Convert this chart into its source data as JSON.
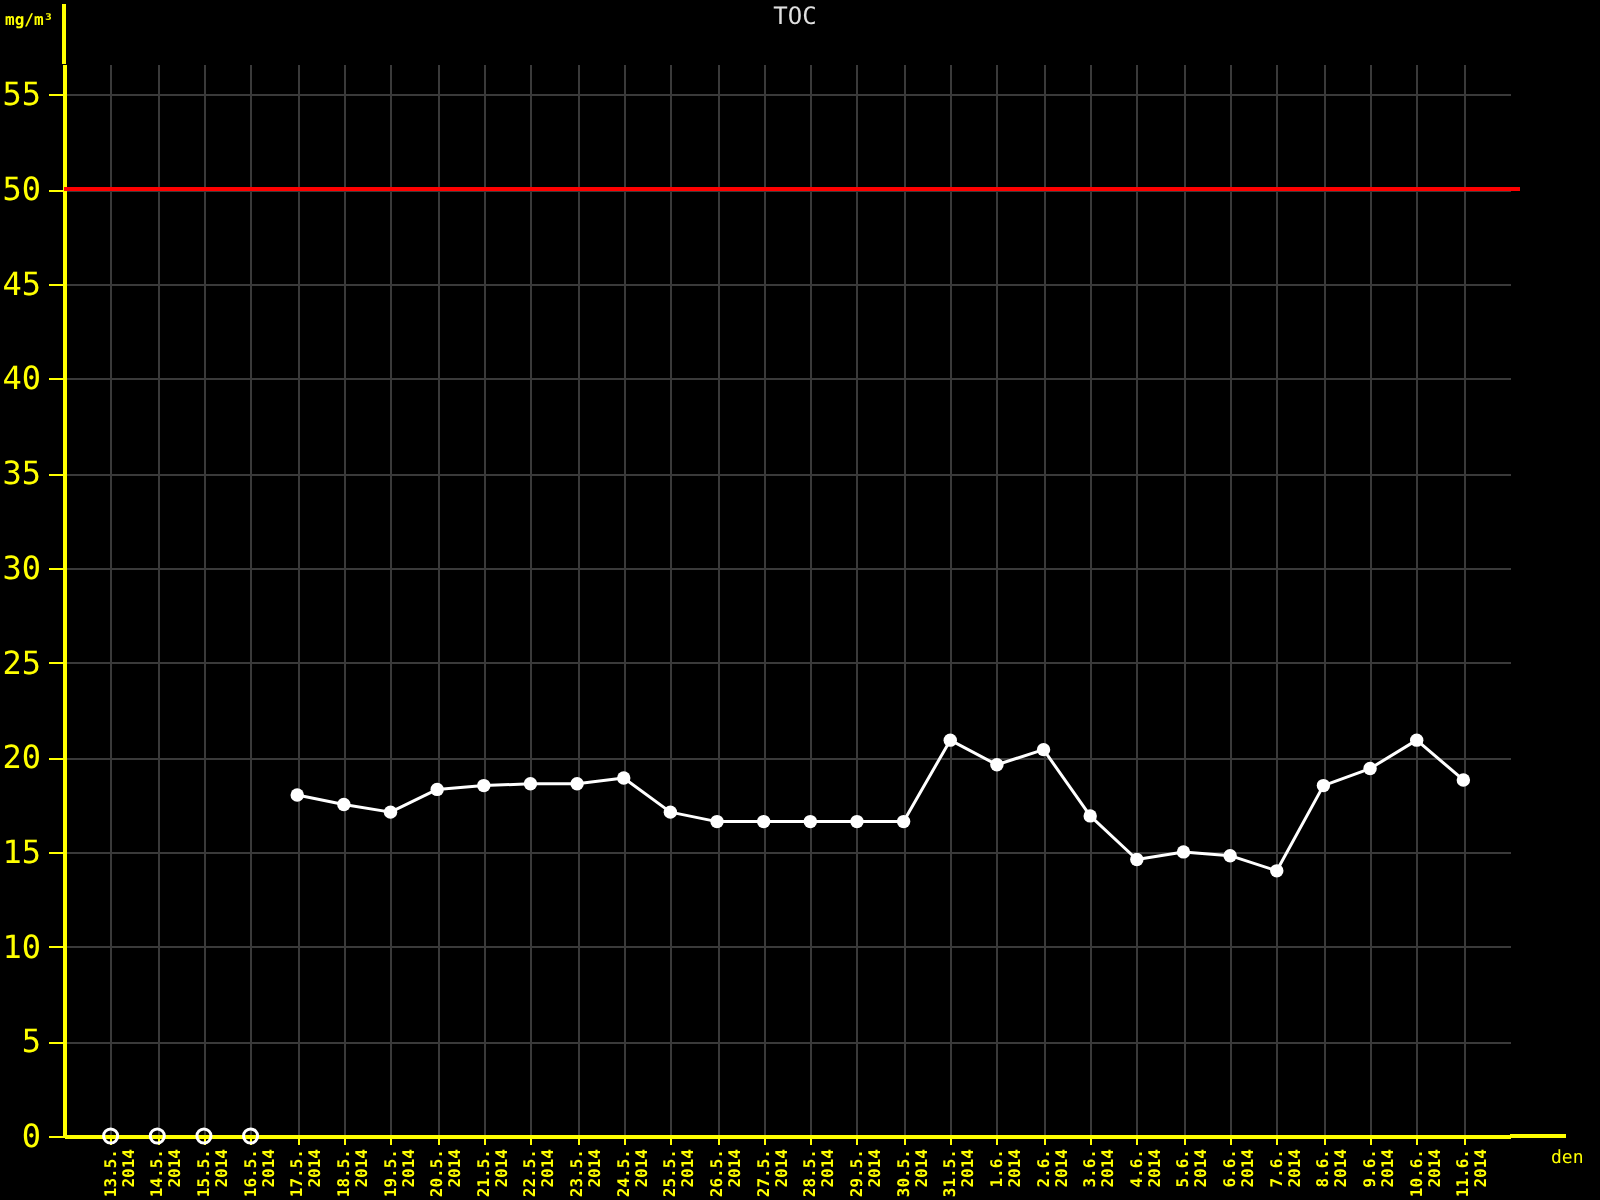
{
  "chart_data": {
    "type": "line",
    "title": "TOC",
    "ylabel": "mg/m³",
    "xlabel": "den",
    "categories": [
      "13.5. 2014",
      "14.5. 2014",
      "15.5. 2014",
      "16.5. 2014",
      "17.5. 2014",
      "18.5. 2014",
      "19.5. 2014",
      "20.5. 2014",
      "21.5. 2014",
      "22.5. 2014",
      "23.5. 2014",
      "24.5. 2014",
      "25.5. 2014",
      "26.5. 2014",
      "27.5. 2014",
      "28.5. 2014",
      "29.5. 2014",
      "30.5. 2014",
      "31.5. 2014",
      "1.6. 2014",
      "2.6. 2014",
      "3.6. 2014",
      "4.6. 2014",
      "5.6. 2014",
      "6.6. 2014",
      "7.6. 2014",
      "8.6. 2014",
      "9.6. 2014",
      "10.6. 2014",
      "11.6. 2014"
    ],
    "series": [
      {
        "color": "#ffffff",
        "marker": "circle",
        "values": [
          null,
          null,
          null,
          null,
          18.0,
          17.5,
          17.1,
          18.3,
          18.5,
          18.6,
          18.6,
          18.9,
          17.1,
          16.6,
          16.6,
          16.6,
          16.6,
          16.6,
          20.9,
          19.6,
          20.4,
          16.9,
          14.6,
          15.0,
          14.8,
          14.0,
          18.5,
          19.4,
          20.9,
          18.8
        ]
      },
      {
        "type": "scatter",
        "color": "#ffffff",
        "marker": "circle",
        "values": [
          0,
          0,
          0,
          0,
          null,
          null,
          null,
          null,
          null,
          null,
          null,
          null,
          null,
          null,
          null,
          null,
          null,
          null,
          null,
          null,
          null,
          null,
          null,
          null,
          null,
          null,
          null,
          null,
          null,
          null
        ]
      }
    ],
    "ylim": [
      0,
      56.6
    ],
    "yticks": [
      0,
      5,
      10,
      15,
      20,
      25,
      30,
      35,
      40,
      45,
      50,
      55
    ],
    "ref_lines": [
      {
        "axis": "y",
        "value": 50,
        "color": "#ff0000"
      }
    ],
    "grid": true
  }
}
